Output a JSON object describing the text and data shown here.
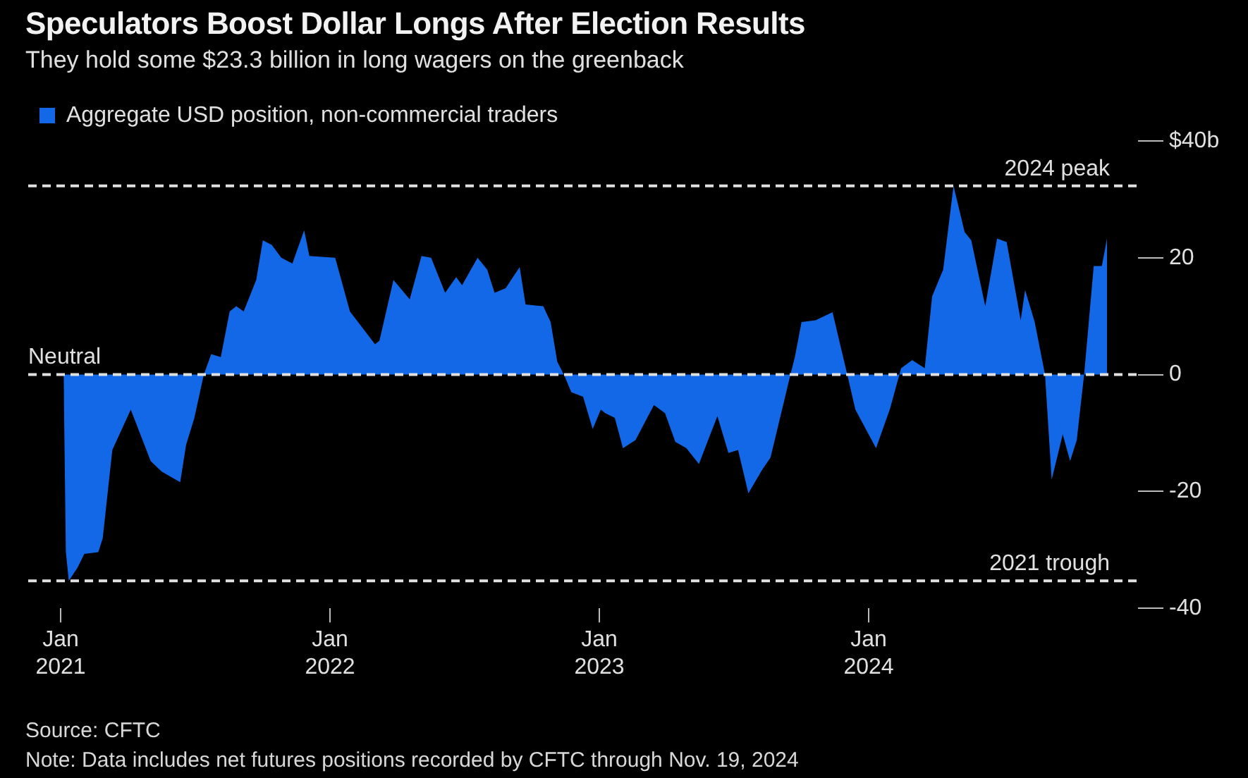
{
  "chart_data": {
    "type": "area",
    "title": "Speculators Boost Dollar Longs After Election Results",
    "subtitle": "They hold some $23.3 billion in long wagers on the greenback",
    "annotations": [
      "Source: CFTC",
      "Note: Data includes net futures positions recorded by CFTC through Nov. 19, 2024"
    ],
    "x": [
      "2021-01-05",
      "2021-01-08",
      "2021-01-12",
      "2021-01-24",
      "2021-02-02",
      "2021-02-21",
      "2021-02-27",
      "2021-03-12",
      "2021-04-06",
      "2021-05-03",
      "2021-05-18",
      "2021-06-12",
      "2021-06-20",
      "2021-07-01",
      "2021-07-14",
      "2021-07-24",
      "2021-08-06",
      "2021-08-18",
      "2021-08-27",
      "2021-09-06",
      "2021-09-23",
      "2021-10-02",
      "2021-10-14",
      "2021-10-27",
      "2021-11-11",
      "2021-11-27",
      "2021-12-04",
      "2022-01-08",
      "2022-01-28",
      "2022-02-08",
      "2022-03-03",
      "2022-03-09",
      "2022-03-28",
      "2022-04-19",
      "2022-05-05",
      "2022-05-18",
      "2022-06-06",
      "2022-06-21",
      "2022-06-29",
      "2022-07-20",
      "2022-08-02",
      "2022-08-12",
      "2022-08-27",
      "2022-09-15",
      "2022-09-23",
      "2022-10-17",
      "2022-10-27",
      "2022-11-05",
      "2022-11-15",
      "2022-11-24",
      "2022-12-10",
      "2022-12-23",
      "2023-01-03",
      "2023-01-09",
      "2023-01-22",
      "2023-02-02",
      "2023-02-19",
      "2023-03-16",
      "2023-03-31",
      "2023-04-14",
      "2023-04-29",
      "2023-05-16",
      "2023-05-26",
      "2023-06-10",
      "2023-06-25",
      "2023-07-08",
      "2023-07-22",
      "2023-08-10",
      "2023-08-21",
      "2023-09-17",
      "2023-09-23",
      "2023-10-02",
      "2023-10-21",
      "2023-11-13",
      "2023-12-03",
      "2023-12-14",
      "2024-01-11",
      "2024-01-30",
      "2024-02-14",
      "2024-02-29",
      "2024-03-17",
      "2024-03-27",
      "2024-04-11",
      "2024-04-25",
      "2024-05-10",
      "2024-05-19",
      "2024-06-07",
      "2024-06-23",
      "2024-07-06",
      "2024-07-25",
      "2024-07-31",
      "2024-08-13",
      "2024-08-27",
      "2024-09-05",
      "2024-09-20",
      "2024-09-30",
      "2024-10-09",
      "2024-10-19",
      "2024-11-01",
      "2024-11-12",
      "2024-11-19"
    ],
    "series": [
      {
        "name": "Aggregate USD position, non-commercial traders",
        "color": "#1268e6",
        "values": [
          0,
          -30.3,
          -35.3,
          -33,
          -30.7,
          -30.4,
          -28,
          -12.9,
          -6,
          -14.8,
          -16.6,
          -18.4,
          -12,
          -7.5,
          0,
          3.5,
          3,
          10.8,
          11.7,
          10.8,
          16.2,
          23,
          22.2,
          20,
          19,
          24.7,
          20.3,
          20,
          10.8,
          9,
          5.2,
          5.8,
          16.2,
          12.9,
          20.3,
          20,
          14,
          16.7,
          15.3,
          20,
          18,
          14,
          14.8,
          18.4,
          12,
          11.7,
          9,
          2.2,
          -0.3,
          -3,
          -3.8,
          -9.3,
          -6,
          -6.6,
          -7.4,
          -12.6,
          -11.2,
          -5.2,
          -6.6,
          -11.5,
          -12.6,
          -15.3,
          -12,
          -7.1,
          -13.4,
          -12.9,
          -20.3,
          -16.2,
          -14.2,
          0,
          3,
          9,
          9.3,
          10.7,
          0,
          -6,
          -12.6,
          -5.8,
          1.1,
          2.5,
          1.1,
          13.4,
          18,
          32.3,
          24.4,
          23,
          11.7,
          23.3,
          22.7,
          9.3,
          14.5,
          9,
          0,
          -18,
          -10.2,
          -14.8,
          -11.2,
          0,
          18.6,
          18.6,
          23.3
        ]
      }
    ],
    "xlim": [
      "2020-11-18",
      "2024-12-31"
    ],
    "xticks": [
      {
        "value": "2021-01",
        "label": "Jan 2021"
      },
      {
        "value": "2022-01",
        "label": "Jan 2022"
      },
      {
        "value": "2023-01",
        "label": "Jan 2023"
      },
      {
        "value": "2024-01",
        "label": "Jan 2024"
      }
    ],
    "ylim": [
      -40,
      40
    ],
    "yticks": [
      {
        "value": 40,
        "label": "$40b"
      },
      20,
      0,
      -20,
      -40
    ],
    "ref_lines": [
      {
        "axis": "y",
        "value": 32.3,
        "label": "2024 peak",
        "color": "#e0e0e0",
        "line_style": "dashed"
      },
      {
        "axis": "y",
        "value": 0,
        "label": "Neutral",
        "color": "#e0e0e0",
        "line_style": "dashed"
      },
      {
        "axis": "y",
        "value": -35.3,
        "label": "2021 trough",
        "color": "#e0e0e0",
        "line_style": "dashed"
      }
    ],
    "grid": false,
    "legend": "top left"
  }
}
